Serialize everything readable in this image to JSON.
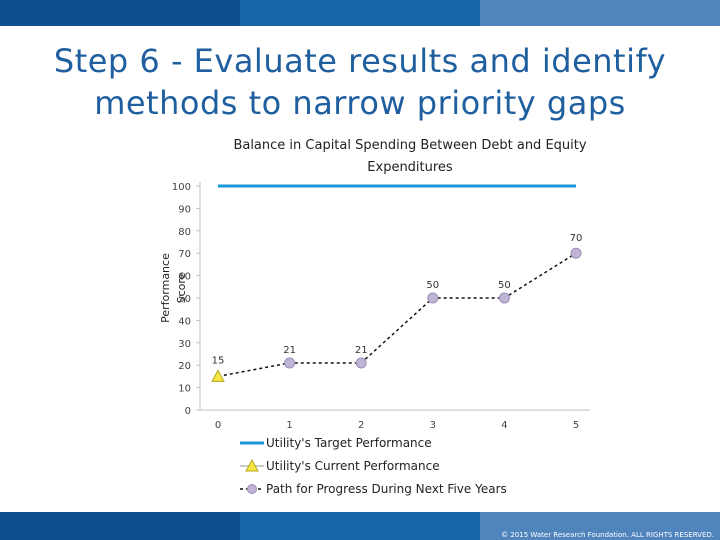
{
  "slide": {
    "title": "Step 6 - Evaluate results and identify methods to narrow priority gaps",
    "copyright": "© 2015 Water Research Foundation. ALL RIGHTS RESERVED.",
    "colors": {
      "title": "#1f5f9f",
      "bar_dark": "#0d4f8f",
      "bar_mid": "#1565a8",
      "bar_light": "#4f84bd"
    }
  },
  "chart_data": {
    "type": "line",
    "title_lines": [
      "Balance in Capital Spending Between Debt and Equity",
      "Expenditures"
    ],
    "ylabel_lines": [
      "Performance",
      "Score"
    ],
    "xlabel": "",
    "x_ticks": [
      "0",
      "1",
      "2",
      "3",
      "4",
      "5"
    ],
    "y_ticks": [
      "0",
      "10",
      "20",
      "30",
      "40",
      "50",
      "60",
      "70",
      "80",
      "90",
      "100"
    ],
    "xlim": [
      0,
      5
    ],
    "ylim": [
      0,
      100
    ],
    "grid": false,
    "legend_position": "bottom",
    "series": [
      {
        "name": "Utility's Target Performance",
        "kind": "line",
        "x": [
          0,
          5
        ],
        "y": [
          100,
          100
        ],
        "color": "#1a9ad6"
      },
      {
        "name": "Utility's  Current Performance",
        "kind": "marker",
        "marker": "triangle",
        "x": [
          0
        ],
        "y": [
          15
        ],
        "labels": [
          "15"
        ],
        "color": "#f5e642"
      },
      {
        "name": "Path for Progress During Next Five Years",
        "kind": "dashed-line",
        "marker": "circle",
        "x": [
          1,
          2,
          3,
          4,
          5
        ],
        "y": [
          21,
          21,
          50,
          50,
          70
        ],
        "labels": [
          "21",
          "21",
          "50",
          "50",
          "70"
        ],
        "color": "#c0b4d6"
      }
    ]
  }
}
